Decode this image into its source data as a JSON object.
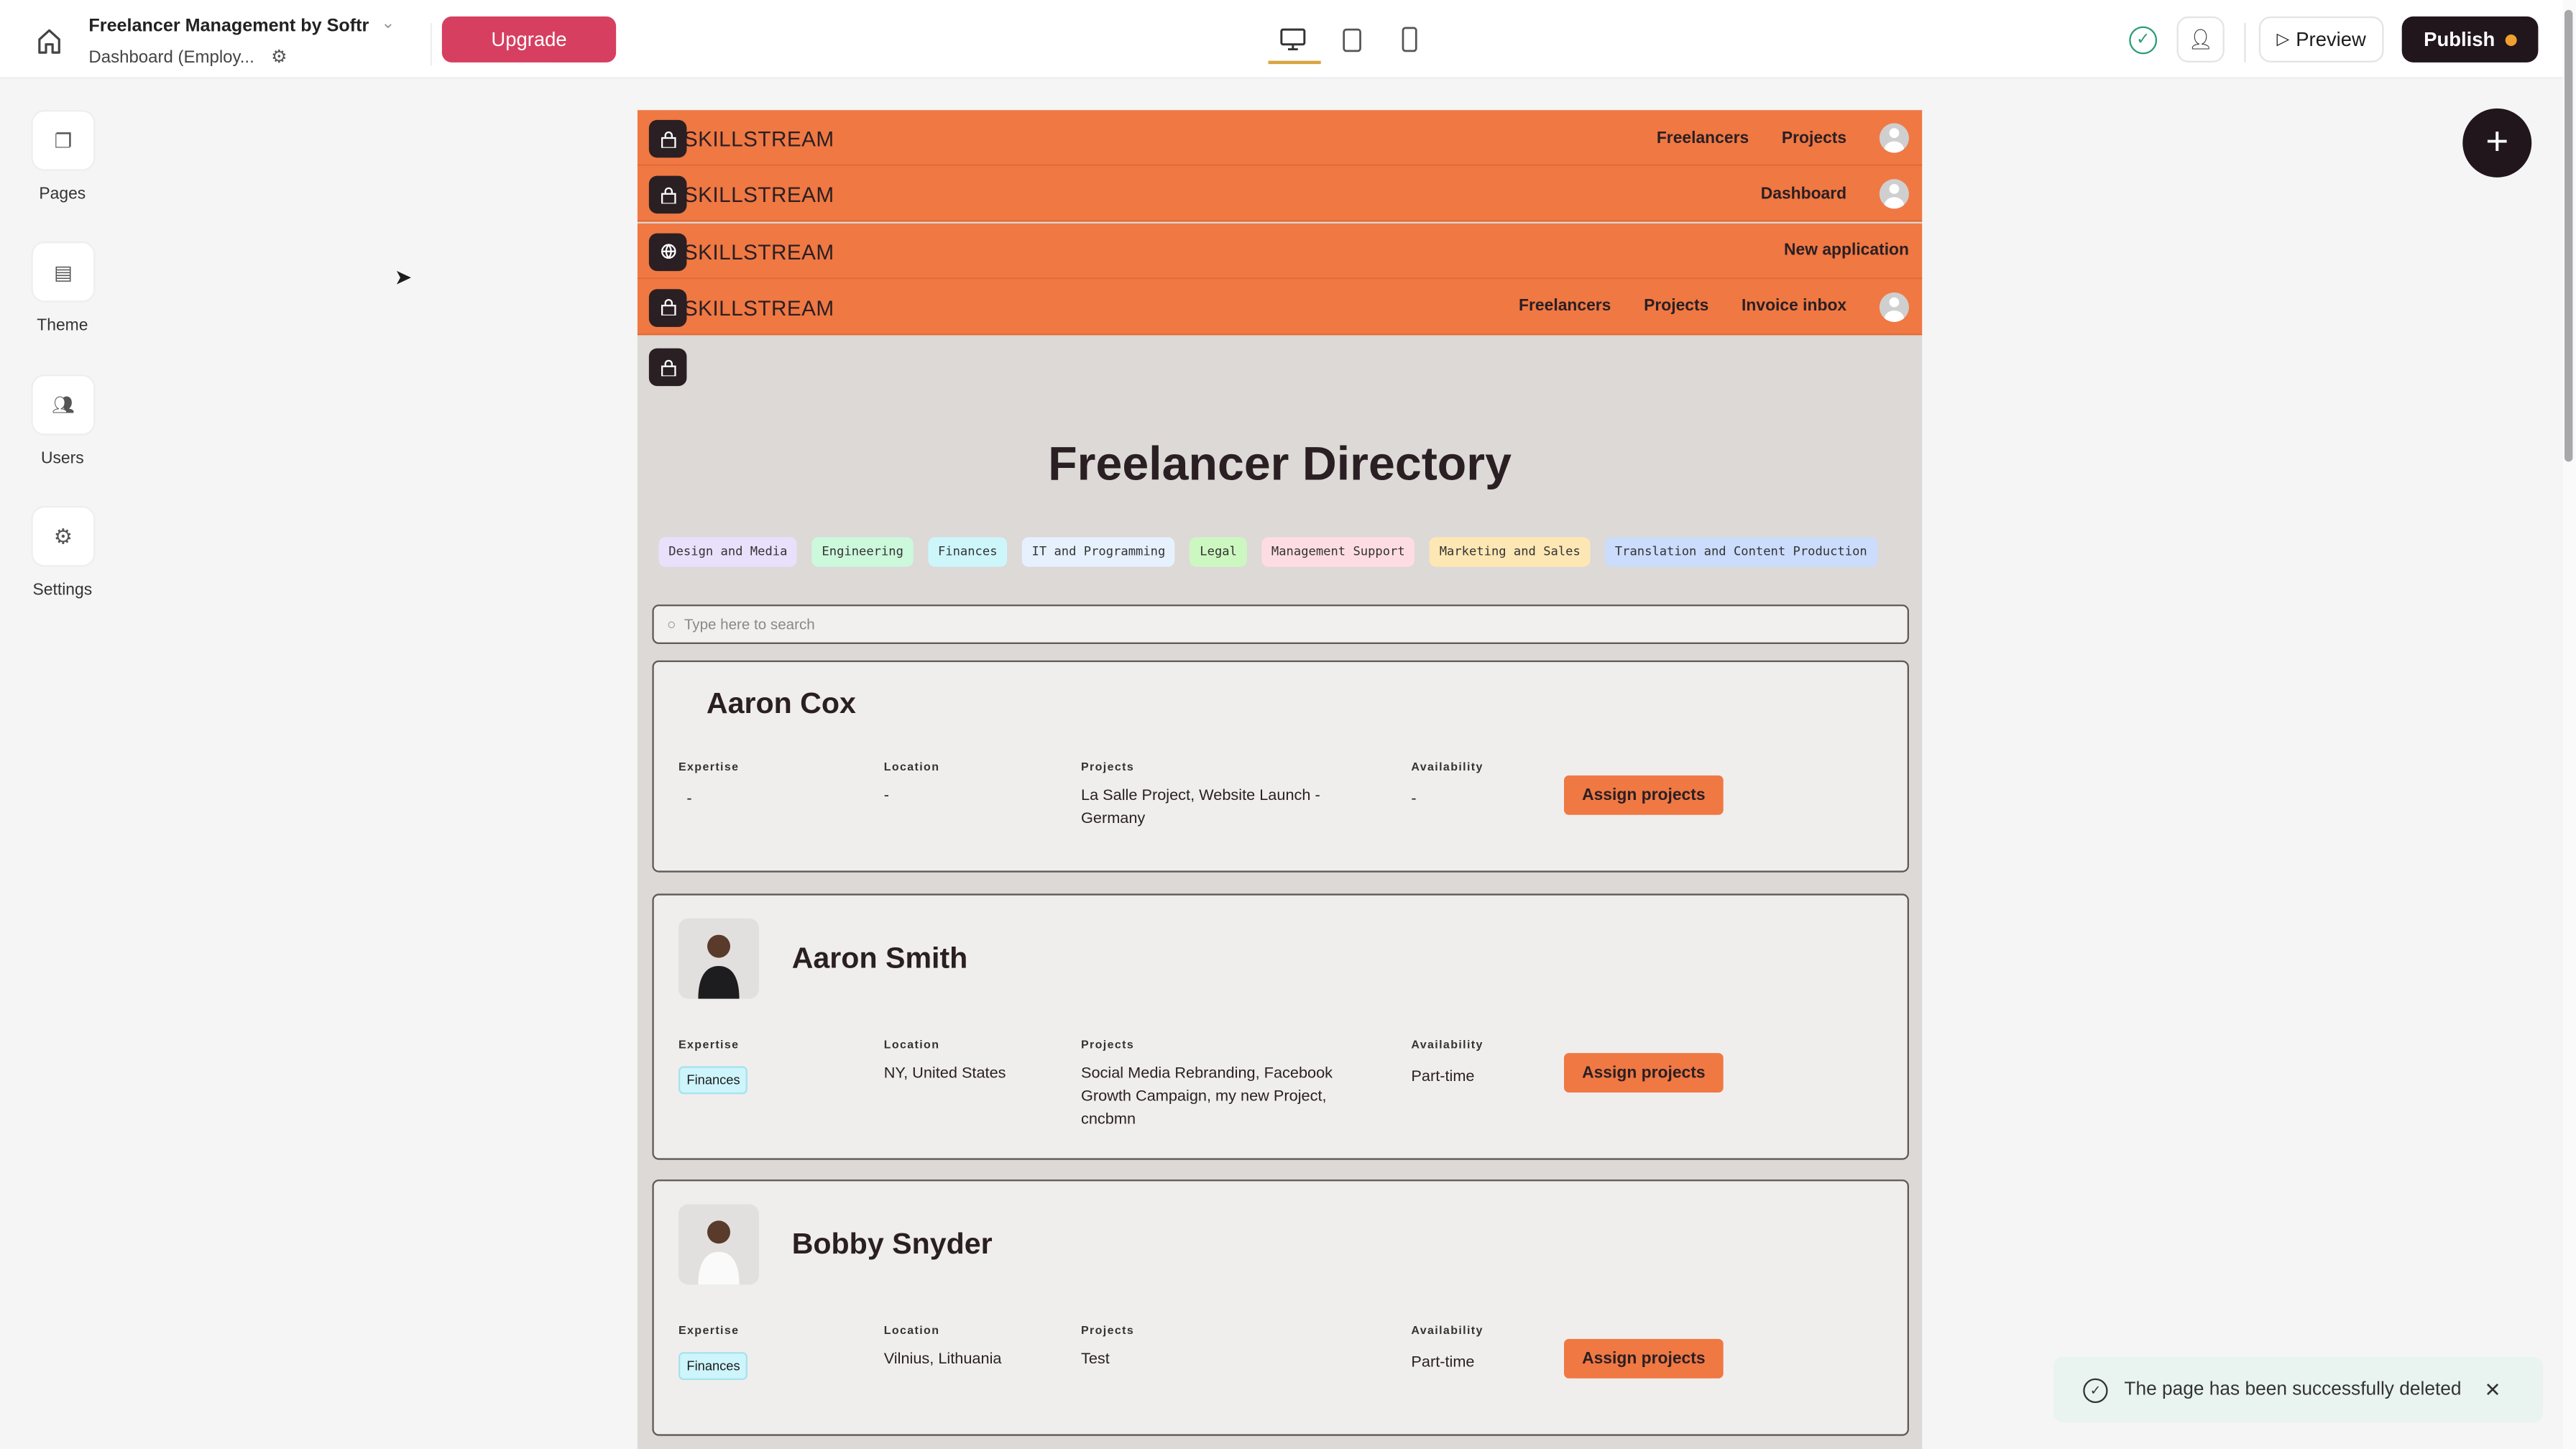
{
  "topbar": {
    "app_title": "Freelancer Management by Softr",
    "page_name": "Dashboard (Employ...",
    "upgrade": "Upgrade",
    "preview": "Preview",
    "publish": "Publish",
    "publish_dot_color": "#f0a030"
  },
  "sidebar": {
    "items": [
      {
        "label": "Pages",
        "icon": "pages-icon"
      },
      {
        "label": "Theme",
        "icon": "paint-roller-icon"
      },
      {
        "label": "Users",
        "icon": "users-icon"
      },
      {
        "label": "Settings",
        "icon": "gear-icon"
      }
    ]
  },
  "navbars": [
    {
      "brand": "SKILLSTREAM",
      "icon": "lock-icon",
      "links": [
        "Freelancers",
        "Projects"
      ],
      "avatar": true
    },
    {
      "brand": "SKILLSTREAM",
      "icon": "lock-icon",
      "links": [
        "Dashboard"
      ],
      "avatar": true
    },
    {
      "brand": "SKILLSTREAM",
      "icon": "globe-icon",
      "links": [
        "New application"
      ],
      "avatar": false
    },
    {
      "brand": "SKILLSTREAM",
      "icon": "lock-icon",
      "links": [
        "Freelancers",
        "Projects",
        "Invoice inbox"
      ],
      "avatar": true
    }
  ],
  "directory": {
    "title": "Freelancer Directory",
    "search_placeholder": "Type here to search",
    "tags": [
      {
        "label": "Design and Media",
        "color": "#e9e0fc"
      },
      {
        "label": "Engineering",
        "color": "#ccf8dc"
      },
      {
        "label": "Finances",
        "color": "#cdf6fb"
      },
      {
        "label": "IT and Programming",
        "color": "#e6f1fd"
      },
      {
        "label": "Legal",
        "color": "#cdf7c0"
      },
      {
        "label": "Management Support",
        "color": "#fddde3"
      },
      {
        "label": "Marketing and Sales",
        "color": "#fde7b4"
      },
      {
        "label": "Translation and Content Production",
        "color": "#cbdcfc"
      }
    ],
    "field_labels": {
      "expertise": "Expertise",
      "location": "Location",
      "projects": "Projects",
      "availability": "Availability"
    },
    "assign_label": "Assign projects",
    "freelancers": [
      {
        "name": "Aaron Cox",
        "expertise": "-",
        "location": "-",
        "projects": "La Salle Project, Website Launch - Germany",
        "availability": "-"
      },
      {
        "name": "Aaron Smith",
        "expertise": "Finances",
        "location": "NY, United States",
        "projects": "Social Media Rebranding, Facebook Growth Campaign, my new Project, cncbmn",
        "availability": "Part-time"
      },
      {
        "name": "Bobby Snyder",
        "expertise": "Finances",
        "location": "Vilnius, Lithuania",
        "projects": "Test",
        "availability": "Part-time"
      }
    ]
  },
  "toast": {
    "message": "The page has been successfully deleted"
  },
  "colors": {
    "accent": "#f07843",
    "upgrade": "#d63f60",
    "dark": "#21161b"
  }
}
